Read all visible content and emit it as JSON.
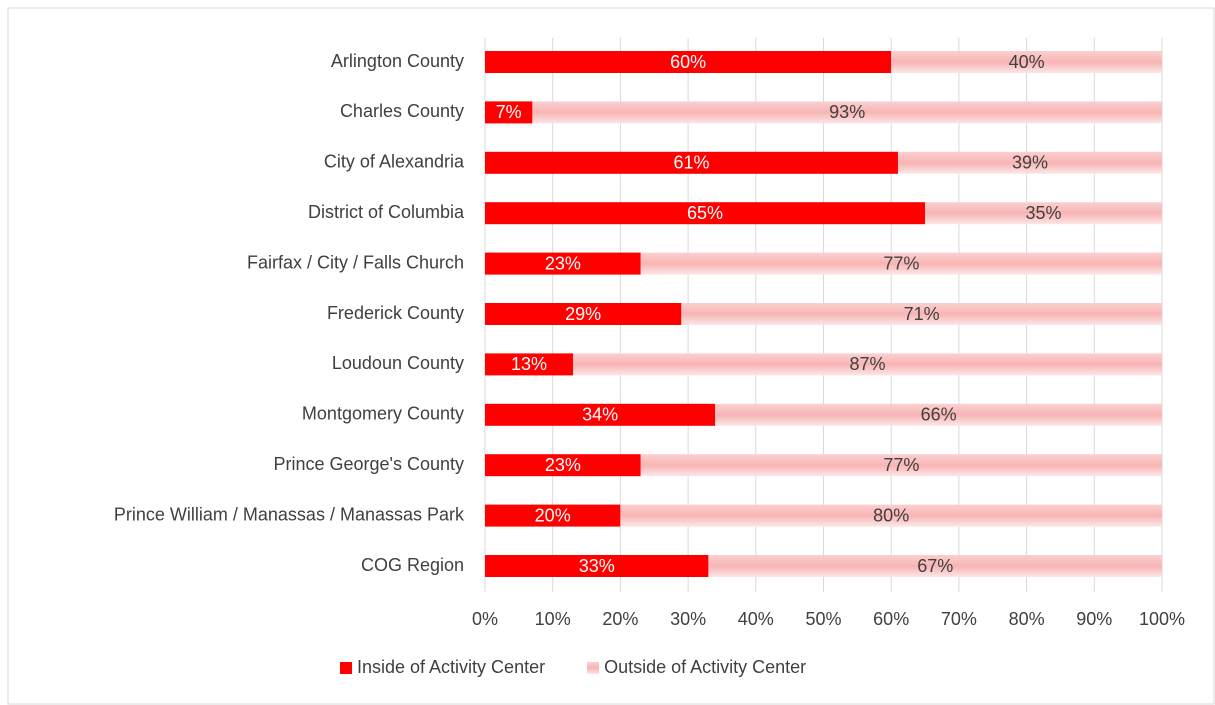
{
  "chart_data": {
    "type": "stacked_bar_horizontal",
    "categories": [
      "Arlington County",
      "Charles County",
      "City of Alexandria",
      "District of Columbia",
      "Fairfax / City / Falls Church",
      "Frederick County",
      "Loudoun County",
      "Montgomery County",
      "Prince George's County",
      "Prince William / Manassas / Manassas Park",
      "COG Region"
    ],
    "series": [
      {
        "name": "Inside of Activity Center",
        "color": "#ff0000",
        "values": [
          60,
          7,
          61,
          65,
          23,
          29,
          13,
          34,
          23,
          20,
          33
        ],
        "value_labels": [
          "60%",
          "7%",
          "61%",
          "65%",
          "23%",
          "29%",
          "13%",
          "34%",
          "23%",
          "20%",
          "33%"
        ]
      },
      {
        "name": "Outside of Activity Center",
        "color": "#f8b4b4",
        "values": [
          40,
          93,
          39,
          35,
          77,
          71,
          87,
          66,
          77,
          80,
          67
        ],
        "value_labels": [
          "40%",
          "93%",
          "39%",
          "35%",
          "77%",
          "71%",
          "87%",
          "66%",
          "77%",
          "80%",
          "67%"
        ]
      }
    ],
    "xlim": [
      0,
      100
    ],
    "xticks": [
      {
        "value": 0,
        "label": "0%"
      },
      {
        "value": 10,
        "label": "10%"
      },
      {
        "value": 20,
        "label": "20%"
      },
      {
        "value": 30,
        "label": "30%"
      },
      {
        "value": 40,
        "label": "40%"
      },
      {
        "value": 50,
        "label": "50%"
      },
      {
        "value": 60,
        "label": "60%"
      },
      {
        "value": 70,
        "label": "70%"
      },
      {
        "value": 80,
        "label": "80%"
      },
      {
        "value": 90,
        "label": "90%"
      },
      {
        "value": 100,
        "label": "100%"
      }
    ],
    "grid": true,
    "legend": "bottom"
  }
}
